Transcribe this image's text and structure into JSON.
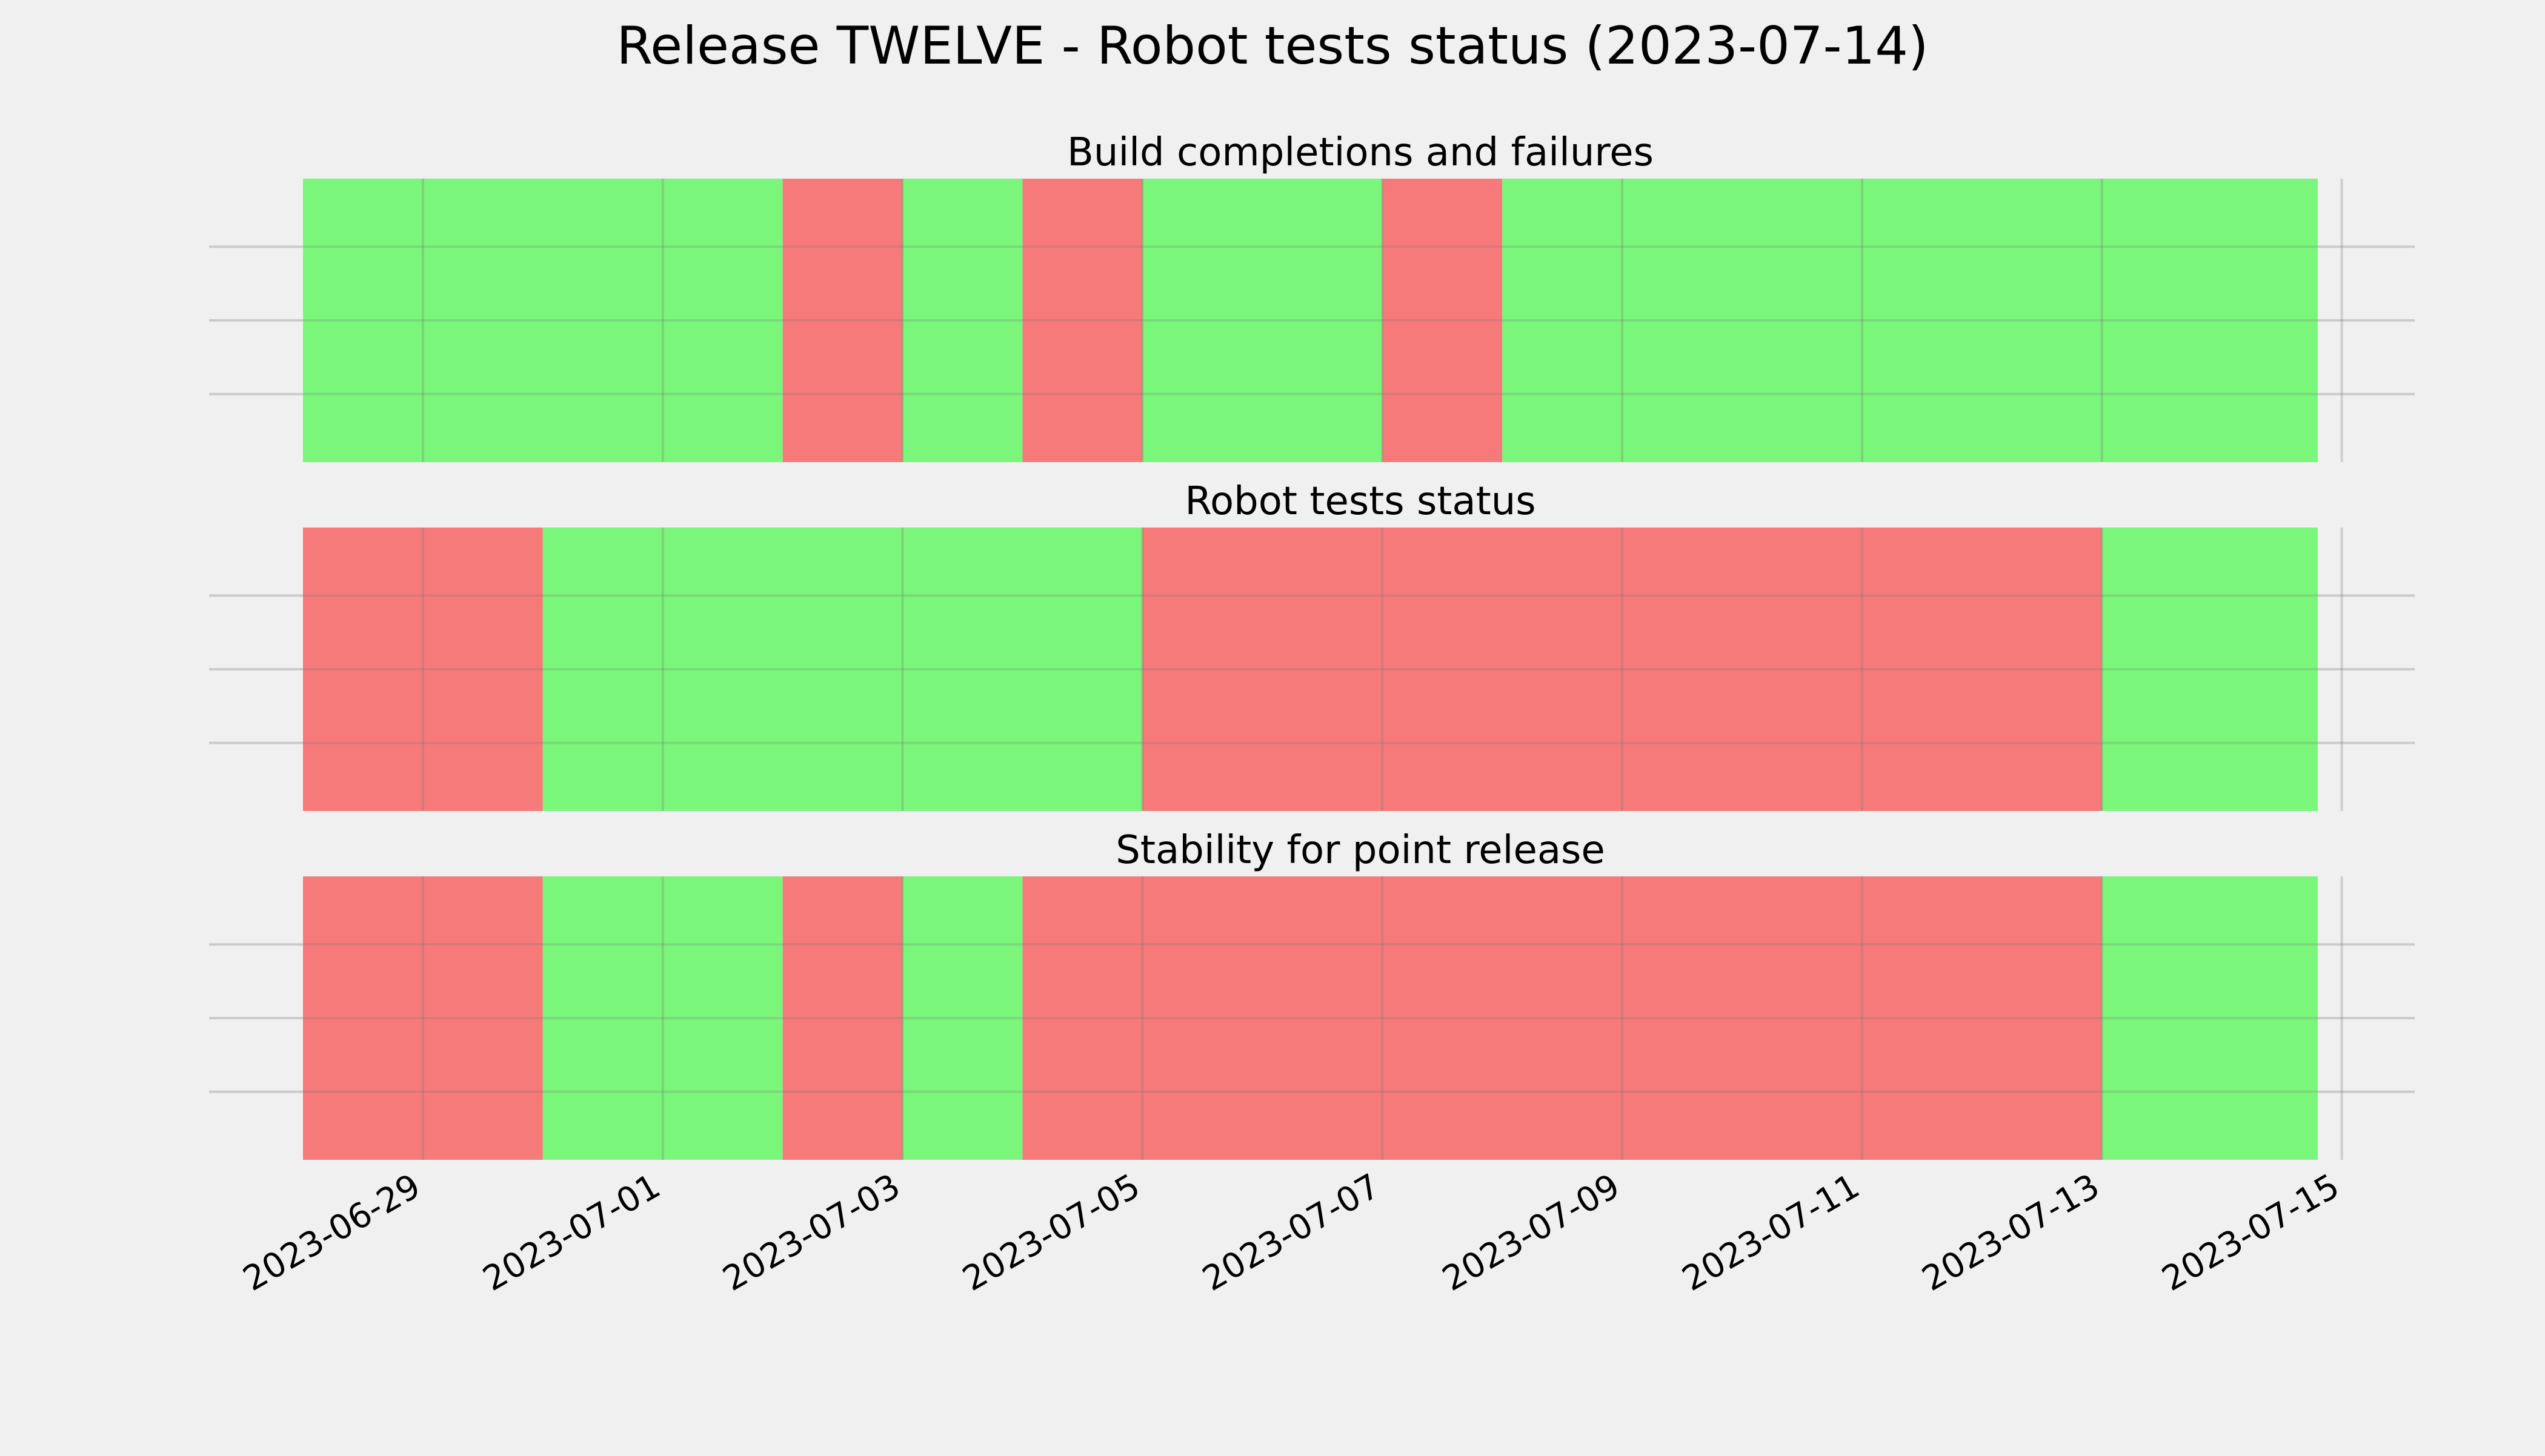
{
  "chart_data": {
    "type": "timeline",
    "title": "Release TWELVE - Robot tests status (2023-07-14)",
    "x_ticks": [
      "2023-06-29",
      "2023-07-01",
      "2023-07-03",
      "2023-07-05",
      "2023-07-07",
      "2023-07-09",
      "2023-07-11",
      "2023-07-13",
      "2023-07-15"
    ],
    "xlim": [
      "2023-06-28",
      "2023-07-15"
    ],
    "data_range": [
      "2023-06-28",
      "2023-07-14.8"
    ],
    "grid": true,
    "status_colors": {
      "pass": "#77f777",
      "fail": "#f77777"
    },
    "panels": [
      {
        "title": "Build completions and failures",
        "segments": [
          {
            "start": "2023-06-28",
            "end": "2023-07-02",
            "status": "pass"
          },
          {
            "start": "2023-07-02",
            "end": "2023-07-03",
            "status": "fail"
          },
          {
            "start": "2023-07-03",
            "end": "2023-07-04",
            "status": "pass"
          },
          {
            "start": "2023-07-04",
            "end": "2023-07-05",
            "status": "fail"
          },
          {
            "start": "2023-07-05",
            "end": "2023-07-07",
            "status": "pass"
          },
          {
            "start": "2023-07-07",
            "end": "2023-07-08",
            "status": "fail"
          },
          {
            "start": "2023-07-08",
            "end": "2023-07-14.8",
            "status": "pass"
          }
        ]
      },
      {
        "title": "Robot tests status",
        "segments": [
          {
            "start": "2023-06-28",
            "end": "2023-06-30",
            "status": "fail"
          },
          {
            "start": "2023-06-30",
            "end": "2023-07-05",
            "status": "pass"
          },
          {
            "start": "2023-07-05",
            "end": "2023-07-13",
            "status": "fail"
          },
          {
            "start": "2023-07-13",
            "end": "2023-07-14.8",
            "status": "pass"
          }
        ]
      },
      {
        "title": "Stability for point release",
        "segments": [
          {
            "start": "2023-06-28",
            "end": "2023-06-30",
            "status": "fail"
          },
          {
            "start": "2023-06-30",
            "end": "2023-07-02",
            "status": "pass"
          },
          {
            "start": "2023-07-02",
            "end": "2023-07-03",
            "status": "fail"
          },
          {
            "start": "2023-07-03",
            "end": "2023-07-04",
            "status": "pass"
          },
          {
            "start": "2023-07-04",
            "end": "2023-07-13",
            "status": "fail"
          },
          {
            "start": "2023-07-13",
            "end": "2023-07-14.8",
            "status": "pass"
          }
        ]
      }
    ]
  }
}
